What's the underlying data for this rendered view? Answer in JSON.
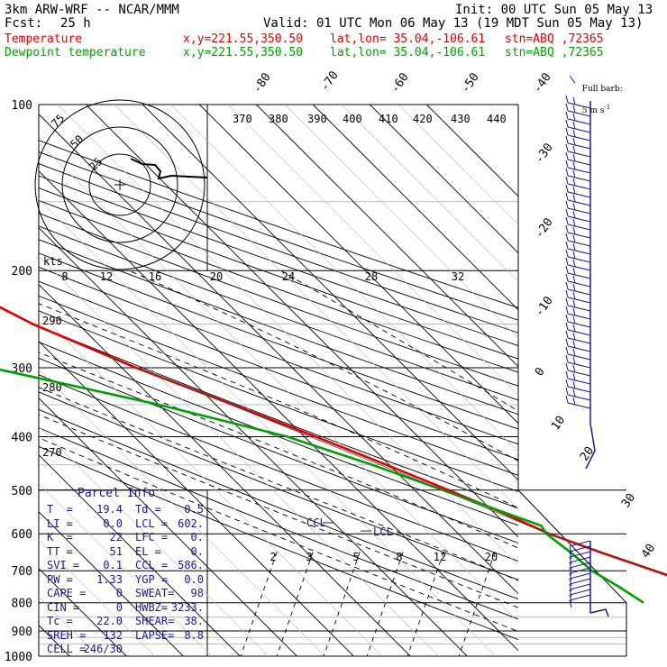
{
  "header": {
    "model": "3km ARW-WRF -- NCAR/MMM",
    "init": "Init: 00 UTC Sun 05 May 13",
    "fcst_label": "Fcst:",
    "fcst_hours": "25 h",
    "valid": "Valid: 01 UTC Mon 06 May 13 (19 MDT Sun 05 May 13)",
    "temp_label": "Temperature",
    "dew_label": "Dewpoint temperature",
    "xy": "x,y=221.55,350.50",
    "latlon": "lat,lon= 35.04,-106.61",
    "stn": "stn=ABQ ,72365"
  },
  "legend": {
    "full_barb_line1": "Full barb:",
    "full_barb_line2": "5 m s",
    "full_barb_sup": "-1"
  },
  "colors": {
    "temperature": "#e00000",
    "dewpoint": "#00a000",
    "barbs": "#1a1a8c",
    "parcel_text": "#1a1a8c",
    "grid": "#000000",
    "isotherm_light": "#bbbbbb"
  },
  "chart_data": {
    "type": "line",
    "subtype": "skew-t log-p sounding",
    "yaxis": {
      "scale": "log",
      "ylim": [
        1000,
        100
      ],
      "ticks": [
        "100",
        "200",
        "300",
        "400",
        "500",
        "600",
        "700",
        "800",
        "900",
        "1000"
      ]
    },
    "isotherm_labels": [
      "-80",
      "-70",
      "-60",
      "-50",
      "-40",
      "-30",
      "-20",
      "-10",
      "0",
      "10",
      "20",
      "30",
      "40"
    ],
    "theta_labels": [
      "370",
      "380",
      "390",
      "400",
      "410",
      "420",
      "430",
      "440"
    ],
    "hodograph_labels": [
      "8",
      "12",
      "16",
      "20",
      "24",
      "28",
      "32"
    ],
    "left_labels": [
      "290",
      "280",
      "270"
    ],
    "mixing_ratio_labels": [
      "2",
      "3",
      "5",
      "8",
      "12",
      "20"
    ],
    "ccl_label": "CCL",
    "lcl_label": "LCL",
    "kts_label": "kts",
    "hodo_ring_labels": [
      "25",
      "50",
      "75"
    ],
    "temperature": {
      "name": "Temperature",
      "points": [
        [
          100,
          -57.5
        ],
        [
          110,
          -59
        ],
        [
          130,
          -62
        ],
        [
          160,
          -66.5
        ],
        [
          180,
          -68
        ],
        [
          200,
          -67
        ],
        [
          250,
          -58
        ],
        [
          300,
          -47.5
        ],
        [
          350,
          -37
        ],
        [
          400,
          -28
        ],
        [
          450,
          -20.5
        ],
        [
          500,
          -14
        ],
        [
          550,
          -8.5
        ],
        [
          600,
          -4
        ],
        [
          650,
          2
        ],
        [
          700,
          8
        ],
        [
          750,
          13.5
        ],
        [
          800,
          19.4
        ]
      ]
    },
    "dewpoint": {
      "name": "Dewpoint temperature",
      "points": [
        [
          100,
          -101
        ],
        [
          120,
          -101
        ],
        [
          160,
          -96
        ],
        [
          200,
          -92
        ],
        [
          250,
          -79
        ],
        [
          300,
          -73
        ],
        [
          350,
          -50
        ],
        [
          400,
          -33
        ],
        [
          450,
          -23
        ],
        [
          500,
          -15
        ],
        [
          550,
          -8
        ],
        [
          580,
          -4
        ],
        [
          600,
          -4.5
        ],
        [
          650,
          -3.5
        ],
        [
          700,
          -3
        ],
        [
          750,
          -1
        ],
        [
          800,
          0.5
        ]
      ]
    },
    "parcel_info": {
      "title": "Parcel Info",
      "rows": [
        [
          "T  =",
          "19.4",
          "Td =",
          "0.5"
        ],
        [
          "LI =",
          "0.0",
          "LCL =",
          "602."
        ],
        [
          "K  =",
          "22",
          "LFC =",
          "0."
        ],
        [
          "TT =",
          "51",
          "EL =",
          "0."
        ],
        [
          "SVI =",
          "0.1",
          "CCL =",
          "586."
        ],
        [
          "PW =",
          "1.33",
          "YGP =",
          "0.0"
        ],
        [
          "CAPE =",
          "0",
          "SWEAT=",
          "98"
        ],
        [
          "CIN =",
          "0",
          "HWBZ=",
          "3233."
        ],
        [
          "Tc =",
          "22.0",
          "SHEAR=",
          "38."
        ],
        [
          "SREH =",
          "132",
          "LAPSE=",
          "8.8"
        ],
        [
          "CELL =",
          "246/30",
          "",
          ""
        ]
      ]
    }
  }
}
